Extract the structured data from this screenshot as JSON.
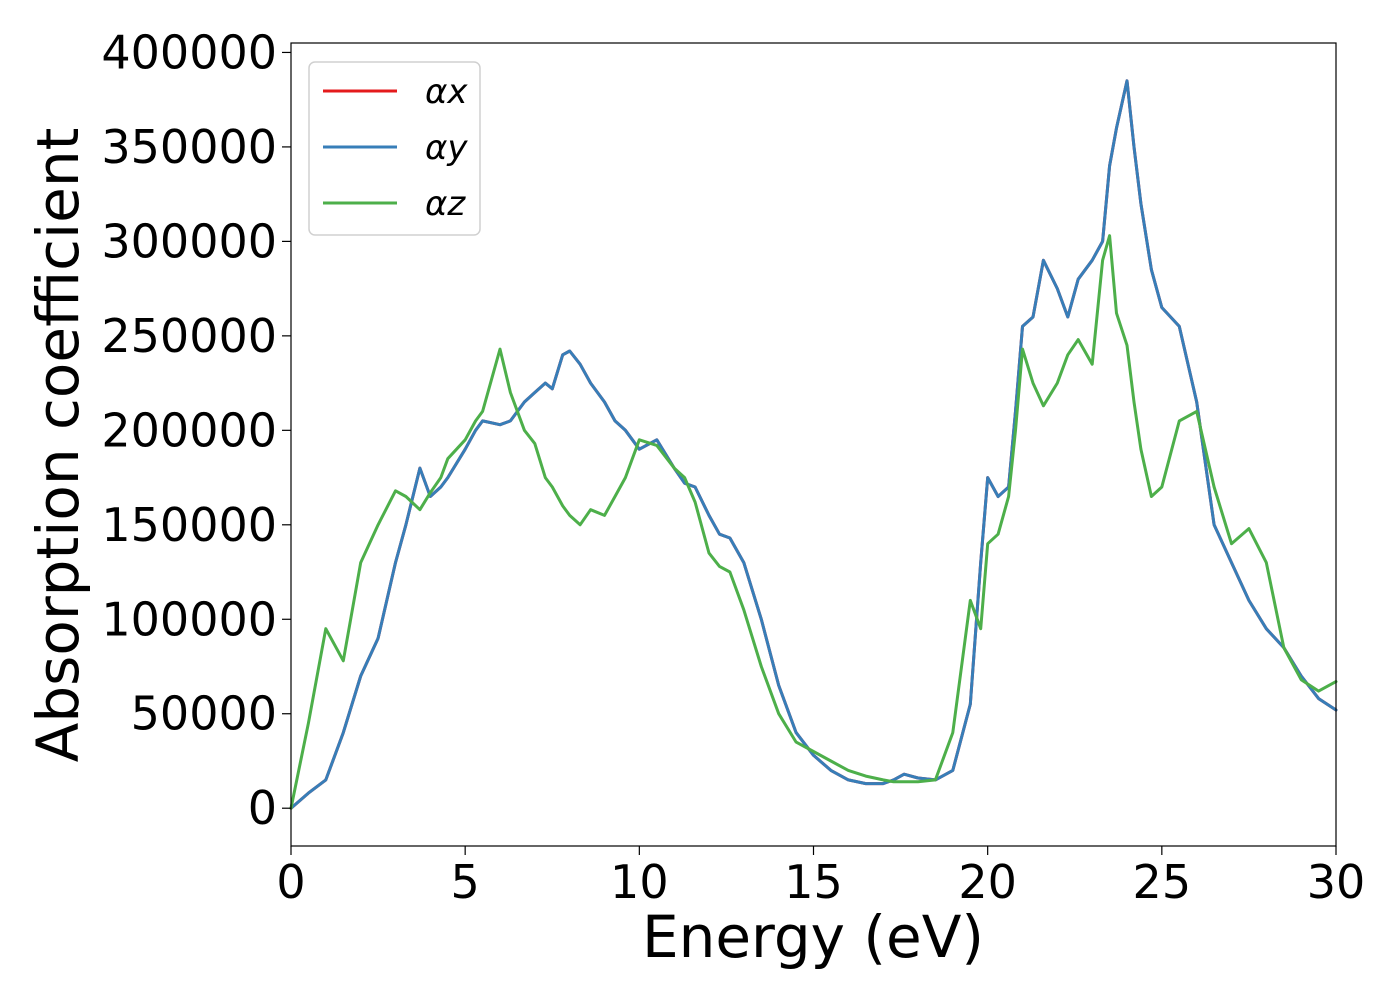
{
  "chart_data": {
    "type": "line",
    "title": "",
    "xlabel": "Energy (eV)",
    "ylabel": "Absorption coefficient",
    "xlim": [
      0,
      30
    ],
    "ylim": [
      -20000,
      405000
    ],
    "xticks": [
      0,
      5,
      10,
      15,
      20,
      25,
      30
    ],
    "xtick_labels": [
      "0",
      "5",
      "10",
      "15",
      "20",
      "25",
      "30"
    ],
    "yticks": [
      0,
      50000,
      100000,
      150000,
      200000,
      250000,
      300000,
      350000,
      400000
    ],
    "ytick_labels": [
      "0",
      "50000",
      "100000",
      "150000",
      "200000",
      "250000",
      "300000",
      "350000",
      "400000"
    ],
    "grid": false,
    "legend_position": "top-left",
    "x": [
      0,
      0.5,
      1,
      1.5,
      2,
      2.5,
      3,
      3.3,
      3.7,
      4,
      4.3,
      4.5,
      5,
      5.3,
      5.5,
      6,
      6.3,
      6.7,
      7,
      7.3,
      7.5,
      7.8,
      8,
      8.3,
      8.6,
      9,
      9.3,
      9.6,
      10,
      10.5,
      11,
      11.3,
      11.6,
      12,
      12.3,
      12.6,
      13,
      13.5,
      14,
      14.5,
      15,
      15.5,
      16,
      16.5,
      17,
      17.3,
      17.6,
      18,
      18.5,
      19,
      19.5,
      19.8,
      20,
      20.3,
      20.6,
      20.8,
      21,
      21.3,
      21.6,
      22,
      22.3,
      22.6,
      23,
      23.3,
      23.5,
      23.7,
      24,
      24.2,
      24.4,
      24.7,
      25,
      25.5,
      26,
      26.5,
      27,
      27.5,
      28,
      28.5,
      29,
      29.5,
      30
    ],
    "series": [
      {
        "name": "αx",
        "color": "#e41a1c",
        "values": [
          0,
          8000,
          15000,
          40000,
          70000,
          90000,
          130000,
          150000,
          180000,
          165000,
          170000,
          175000,
          190000,
          200000,
          205000,
          203000,
          205000,
          215000,
          220000,
          225000,
          222000,
          240000,
          242000,
          235000,
          225000,
          215000,
          205000,
          200000,
          190000,
          195000,
          180000,
          172000,
          170000,
          155000,
          145000,
          143000,
          130000,
          100000,
          65000,
          40000,
          28000,
          20000,
          15000,
          13000,
          13000,
          15000,
          18000,
          16000,
          15000,
          20000,
          55000,
          130000,
          175000,
          165000,
          170000,
          210000,
          255000,
          260000,
          290000,
          275000,
          260000,
          280000,
          290000,
          300000,
          340000,
          360000,
          385000,
          350000,
          320000,
          285000,
          265000,
          255000,
          215000,
          150000,
          130000,
          110000,
          95000,
          85000,
          70000,
          58000,
          52000
        ]
      },
      {
        "name": "αy",
        "color": "#377eb8",
        "values": [
          0,
          8000,
          15000,
          40000,
          70000,
          90000,
          130000,
          150000,
          180000,
          165000,
          170000,
          175000,
          190000,
          200000,
          205000,
          203000,
          205000,
          215000,
          220000,
          225000,
          222000,
          240000,
          242000,
          235000,
          225000,
          215000,
          205000,
          200000,
          190000,
          195000,
          180000,
          172000,
          170000,
          155000,
          145000,
          143000,
          130000,
          100000,
          65000,
          40000,
          28000,
          20000,
          15000,
          13000,
          13000,
          15000,
          18000,
          16000,
          15000,
          20000,
          55000,
          130000,
          175000,
          165000,
          170000,
          210000,
          255000,
          260000,
          290000,
          275000,
          260000,
          280000,
          290000,
          300000,
          340000,
          360000,
          385000,
          350000,
          320000,
          285000,
          265000,
          255000,
          215000,
          150000,
          130000,
          110000,
          95000,
          85000,
          70000,
          58000,
          52000
        ]
      },
      {
        "name": "αz",
        "color": "#4daf4a",
        "values": [
          0,
          45000,
          95000,
          78000,
          130000,
          150000,
          168000,
          165000,
          158000,
          167000,
          175000,
          185000,
          195000,
          205000,
          210000,
          243000,
          220000,
          200000,
          193000,
          175000,
          170000,
          160000,
          155000,
          150000,
          158000,
          155000,
          165000,
          175000,
          195000,
          192000,
          180000,
          175000,
          162000,
          135000,
          128000,
          125000,
          105000,
          75000,
          50000,
          35000,
          30000,
          25000,
          20000,
          17000,
          15000,
          14000,
          14000,
          14000,
          15000,
          40000,
          110000,
          95000,
          140000,
          145000,
          165000,
          200000,
          243000,
          225000,
          213000,
          225000,
          240000,
          248000,
          235000,
          290000,
          303000,
          262000,
          245000,
          215000,
          190000,
          165000,
          170000,
          205000,
          210000,
          170000,
          140000,
          148000,
          130000,
          85000,
          68000,
          62000,
          67000
        ]
      }
    ]
  }
}
